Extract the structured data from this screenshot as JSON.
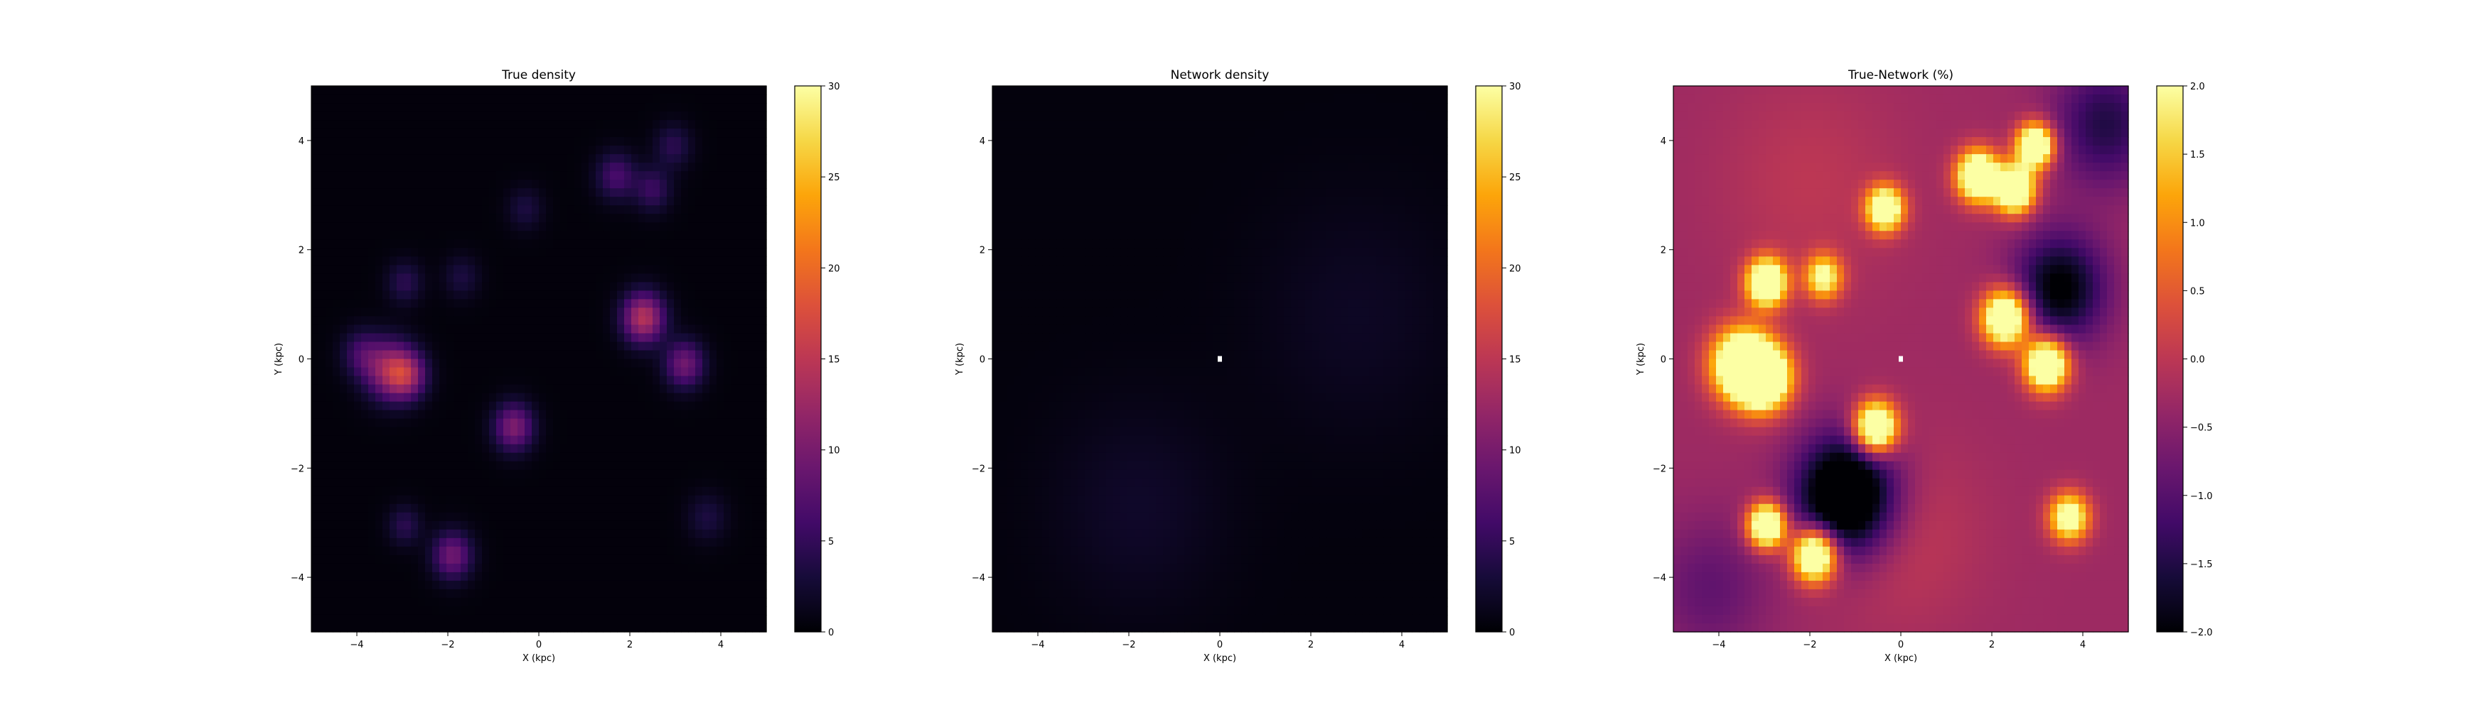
{
  "colormap": "inferno",
  "chart_data": [
    {
      "type": "heatmap",
      "title": "True density",
      "xlabel": "X (kpc)",
      "ylabel": "Y (kpc)",
      "xlim": [
        -5,
        5
      ],
      "ylim": [
        -5,
        5
      ],
      "xticks": [
        -4,
        -2,
        0,
        2,
        4
      ],
      "yticks": [
        -4,
        -2,
        0,
        2,
        4
      ],
      "colorbar": {
        "min": 0,
        "max": 30,
        "ticks": [
          0,
          5,
          10,
          15,
          20,
          25,
          30
        ]
      },
      "background": 0.4,
      "blobs": [
        {
          "x": -3.3,
          "y": -0.2,
          "amp": 11,
          "sigma": 0.38
        },
        {
          "x": -2.9,
          "y": -0.3,
          "amp": 10,
          "sigma": 0.3
        },
        {
          "x": -3.9,
          "y": 0.1,
          "amp": 5,
          "sigma": 0.3
        },
        {
          "x": -0.55,
          "y": -1.25,
          "amp": 10,
          "sigma": 0.3
        },
        {
          "x": 2.3,
          "y": 0.75,
          "amp": 14,
          "sigma": 0.32
        },
        {
          "x": 3.2,
          "y": -0.1,
          "amp": 9,
          "sigma": 0.3
        },
        {
          "x": 1.7,
          "y": 3.35,
          "amp": 6,
          "sigma": 0.3
        },
        {
          "x": 2.5,
          "y": 3.1,
          "amp": 5,
          "sigma": 0.28
        },
        {
          "x": 2.95,
          "y": 3.9,
          "amp": 4,
          "sigma": 0.28
        },
        {
          "x": -2.95,
          "y": 1.4,
          "amp": 4,
          "sigma": 0.27
        },
        {
          "x": -1.7,
          "y": 1.5,
          "amp": 3,
          "sigma": 0.27
        },
        {
          "x": -0.3,
          "y": 2.75,
          "amp": 3,
          "sigma": 0.27
        },
        {
          "x": -1.9,
          "y": -3.6,
          "amp": 9,
          "sigma": 0.3
        },
        {
          "x": -2.95,
          "y": -3.05,
          "amp": 4,
          "sigma": 0.25
        },
        {
          "x": 3.7,
          "y": -2.9,
          "amp": 3,
          "sigma": 0.3
        }
      ]
    },
    {
      "type": "heatmap",
      "title": "Network density",
      "xlabel": "X (kpc)",
      "ylabel": "Y (kpc)",
      "xlim": [
        -5,
        5
      ],
      "ylim": [
        -5,
        5
      ],
      "xticks": [
        -4,
        -2,
        0,
        2,
        4
      ],
      "yticks": [
        -4,
        -2,
        0,
        2,
        4
      ],
      "colorbar": {
        "min": 0,
        "max": 30,
        "ticks": [
          0,
          5,
          10,
          15,
          20,
          25,
          30
        ]
      },
      "background": 0.5,
      "blobs": [
        {
          "x": -1.8,
          "y": -2.7,
          "amp": 1.6,
          "sigma": 1.3
        },
        {
          "x": 3.0,
          "y": 0.8,
          "amp": 1.3,
          "sigma": 1.5
        }
      ]
    },
    {
      "type": "heatmap",
      "title": "True-Network (%)",
      "xlabel": "X (kpc)",
      "ylabel": "Y (kpc)",
      "xlim": [
        -5,
        5
      ],
      "ylim": [
        -5,
        5
      ],
      "xticks": [
        -4,
        -2,
        0,
        2,
        4
      ],
      "yticks": [
        -4,
        -2,
        0,
        2,
        4
      ],
      "colorbar": {
        "min": -2,
        "max": 2,
        "ticks": [
          -2.0,
          -1.5,
          -1.0,
          -0.5,
          0.0,
          0.5,
          1.0,
          1.5,
          2.0
        ]
      },
      "background": -0.3,
      "blobs": [
        {
          "x": -3.5,
          "y": -0.1,
          "amp": 4,
          "sigma": 0.45
        },
        {
          "x": -3.0,
          "y": -0.35,
          "amp": 4,
          "sigma": 0.4
        },
        {
          "x": -0.55,
          "y": -1.25,
          "amp": 4,
          "sigma": 0.32
        },
        {
          "x": 2.3,
          "y": 0.75,
          "amp": 4,
          "sigma": 0.35
        },
        {
          "x": 3.2,
          "y": -0.1,
          "amp": 4,
          "sigma": 0.33
        },
        {
          "x": 1.7,
          "y": 3.35,
          "amp": 4,
          "sigma": 0.32
        },
        {
          "x": 2.5,
          "y": 3.1,
          "amp": 4,
          "sigma": 0.3
        },
        {
          "x": 2.95,
          "y": 3.9,
          "amp": 4,
          "sigma": 0.28
        },
        {
          "x": -2.95,
          "y": 1.4,
          "amp": 4,
          "sigma": 0.3
        },
        {
          "x": -1.7,
          "y": 1.5,
          "amp": 2.5,
          "sigma": 0.28
        },
        {
          "x": -0.35,
          "y": 2.75,
          "amp": 3.5,
          "sigma": 0.28
        },
        {
          "x": -1.9,
          "y": -3.6,
          "amp": 4,
          "sigma": 0.33
        },
        {
          "x": -2.95,
          "y": -3.05,
          "amp": 4,
          "sigma": 0.28
        },
        {
          "x": 3.7,
          "y": -2.9,
          "amp": 3,
          "sigma": 0.3
        },
        {
          "x": -1.2,
          "y": -2.5,
          "amp": -2.8,
          "sigma": 0.75
        },
        {
          "x": 3.5,
          "y": 1.3,
          "amp": -1.8,
          "sigma": 0.7
        },
        {
          "x": 4.5,
          "y": 4.3,
          "amp": -1.2,
          "sigma": 0.8
        },
        {
          "x": -4.2,
          "y": -4.2,
          "amp": -0.6,
          "sigma": 0.9
        },
        {
          "x": 0.0,
          "y": -3.2,
          "amp": 0.35,
          "sigma": 1.2
        },
        {
          "x": -2.0,
          "y": 3.2,
          "amp": 0.3,
          "sigma": 1.4
        }
      ]
    }
  ]
}
